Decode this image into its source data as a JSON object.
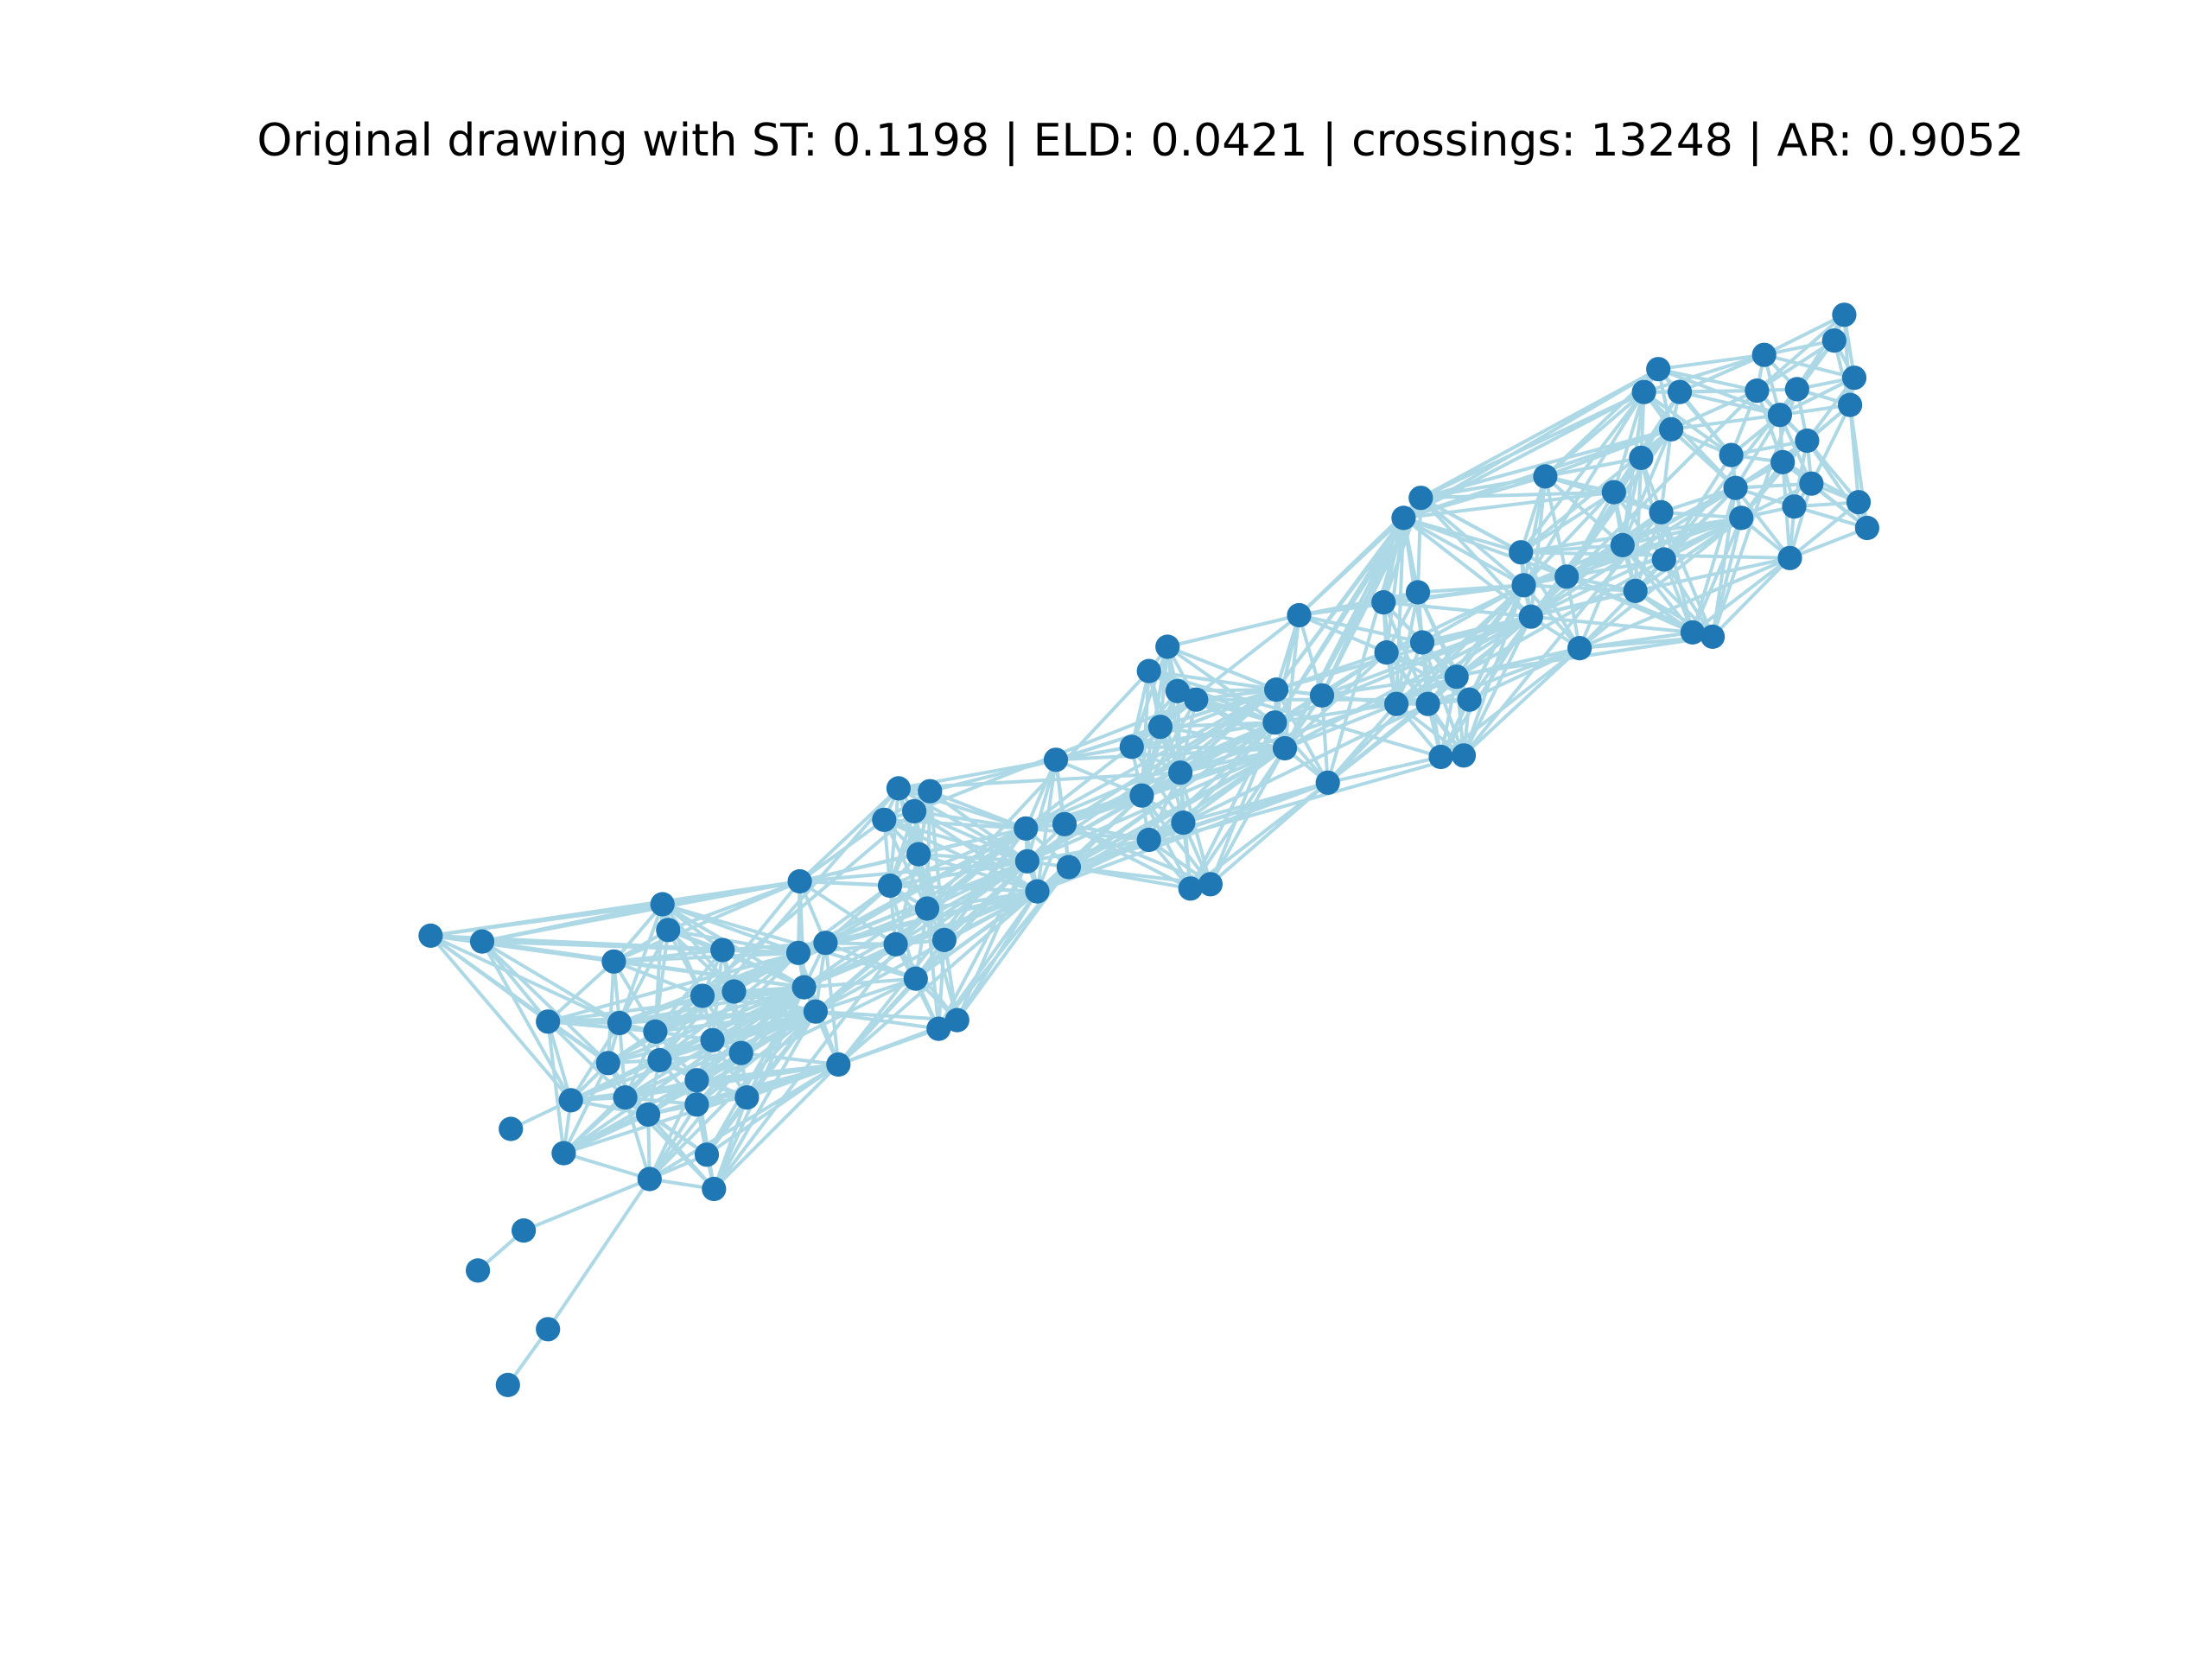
{
  "figure": {
    "title": "Original drawing with ST: 0.1198 | ELD: 0.0421 | crossings: 13248 | AR: 0.9052"
  },
  "colors": {
    "background": "#ffffff",
    "edge": "#add8e6",
    "node": "#1f77b4"
  }
}
